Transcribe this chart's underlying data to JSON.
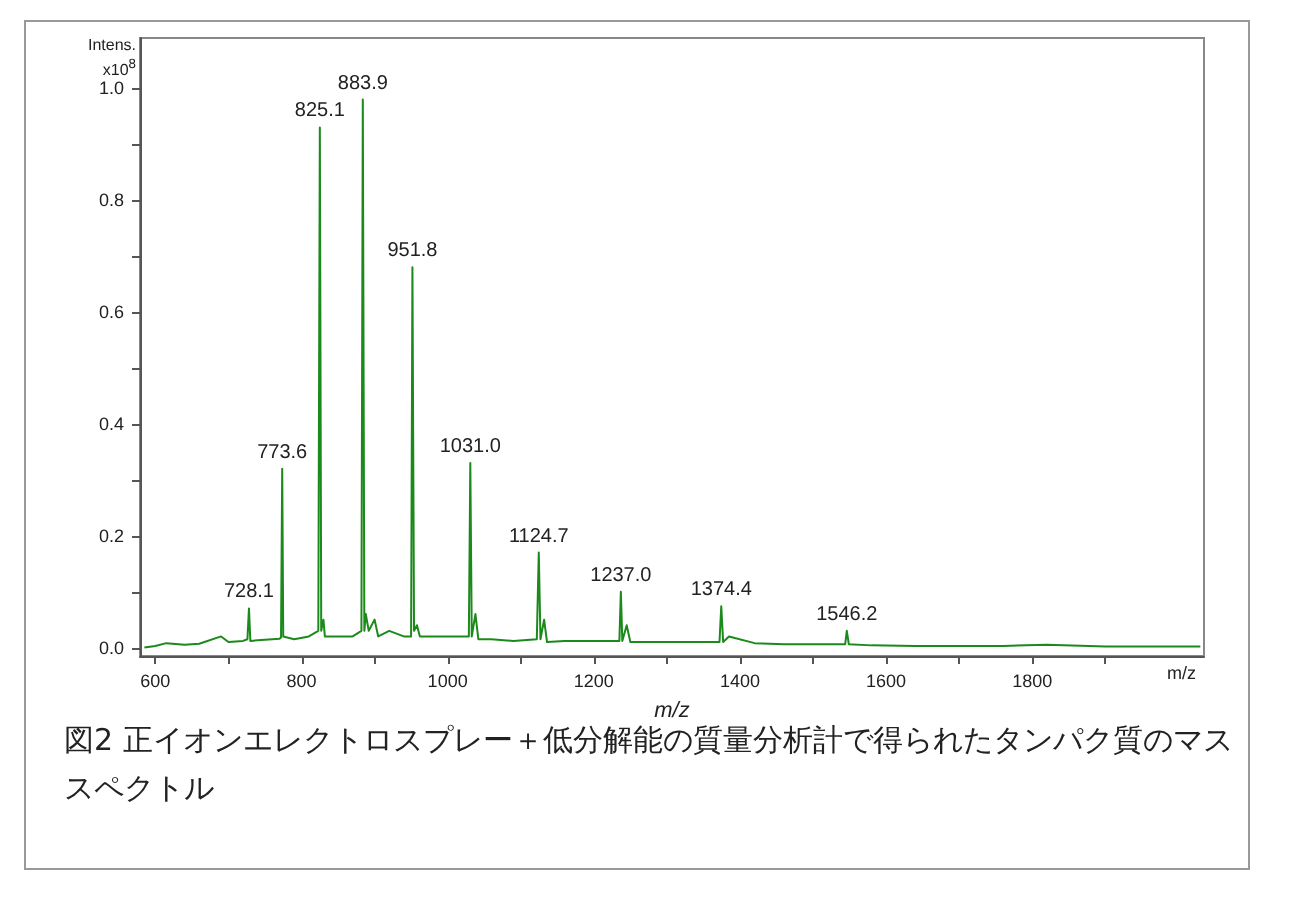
{
  "chart_data": {
    "type": "line",
    "title": "図2 正イオンエレクトロスプレー＋低分解能の質量分析計で得られたタンパク質のマススペクトル",
    "xlabel": "m/z",
    "ylabel": "Intens.\nx10$^{8}$",
    "x": [
      585,
      600,
      615,
      640,
      660,
      690,
      700,
      720,
      726,
      728.1,
      730,
      750,
      770,
      772,
      773.6,
      775,
      790,
      810,
      823,
      825.1,
      827,
      830,
      832,
      850,
      870,
      882,
      883.9,
      886,
      888,
      892,
      900,
      905,
      920,
      940,
      950,
      951.8,
      954,
      958,
      962,
      980,
      1000,
      1029,
      1031.0,
      1033,
      1038,
      1042,
      1060,
      1090,
      1122,
      1124.7,
      1127,
      1132,
      1136,
      1160,
      1200,
      1235,
      1237.0,
      1239,
      1245,
      1250,
      1300,
      1340,
      1372,
      1374.4,
      1377,
      1385,
      1420,
      1460,
      1500,
      1544,
      1546.2,
      1549,
      1580,
      1640,
      1700,
      1760,
      1820,
      1900,
      1960,
      2030
    ],
    "series": [
      {
        "color": "#1b8a1b",
        "values": [
          0,
          0.003,
          0.008,
          0.005,
          0.007,
          0.02,
          0.01,
          0.012,
          0.015,
          0.07,
          0.012,
          0.014,
          0.016,
          0.018,
          0.32,
          0.02,
          0.015,
          0.02,
          0.03,
          0.93,
          0.03,
          0.05,
          0.02,
          0.02,
          0.02,
          0.03,
          0.98,
          0.03,
          0.06,
          0.03,
          0.05,
          0.02,
          0.03,
          0.02,
          0.02,
          0.68,
          0.03,
          0.04,
          0.02,
          0.02,
          0.02,
          0.02,
          0.33,
          0.02,
          0.06,
          0.015,
          0.015,
          0.012,
          0.015,
          0.17,
          0.015,
          0.05,
          0.01,
          0.012,
          0.012,
          0.012,
          0.1,
          0.012,
          0.04,
          0.01,
          0.01,
          0.01,
          0.01,
          0.074,
          0.01,
          0.02,
          0.008,
          0.006,
          0.006,
          0.006,
          0.03,
          0.006,
          0.004,
          0.003,
          0.003,
          0.003,
          0.005,
          0.002,
          0.002,
          0.002
        ]
      }
    ],
    "xlim": [
      579,
      2035
    ],
    "xticks": [
      600,
      {
        "value": 700,
        "label": null
      },
      800,
      {
        "value": 900,
        "label": null
      },
      1000,
      {
        "value": 1100,
        "label": null
      },
      1200,
      {
        "value": 1300,
        "label": null
      },
      1400,
      {
        "value": 1500,
        "label": null
      },
      1600,
      {
        "value": 1700,
        "label": null
      },
      1800,
      {
        "value": 1900,
        "label": null
      }
    ],
    "ylim": [
      -0.015,
      1.09
    ],
    "yticks": [
      {
        "value": 0,
        "label": "0.0"
      },
      {
        "value": 0.1,
        "label": null
      },
      0.2,
      {
        "value": 0.3,
        "label": null
      },
      0.4,
      {
        "value": 0.5,
        "label": null
      },
      0.6,
      {
        "value": 0.7,
        "label": null
      },
      0.8,
      {
        "value": 0.9,
        "label": null
      },
      {
        "value": 1,
        "label": "1.0"
      }
    ],
    "grid": false,
    "marker": "none",
    "line_style": "solid",
    "annotations": [
      "m/z",
      {
        "text": "728.1",
        "x": 728.1,
        "y": 0.07
      },
      {
        "text": "773.6",
        "x": 773.6,
        "y": 0.32
      },
      {
        "text": "825.1",
        "x": 825.1,
        "y": 0.93
      },
      {
        "text": "883.9",
        "x": 883.9,
        "y": 0.98
      },
      {
        "text": "951.8",
        "x": 951.8,
        "y": 0.68
      },
      {
        "text": "1031.0",
        "x": 1031.0,
        "y": 0.33
      },
      {
        "text": "1124.7",
        "x": 1124.7,
        "y": 0.17
      },
      {
        "text": "1237.0",
        "x": 1237.0,
        "y": 0.1
      },
      {
        "text": "1374.4",
        "x": 1374.4,
        "y": 0.074
      },
      {
        "text": "1546.2",
        "x": 1546.2,
        "y": 0.03
      }
    ]
  }
}
